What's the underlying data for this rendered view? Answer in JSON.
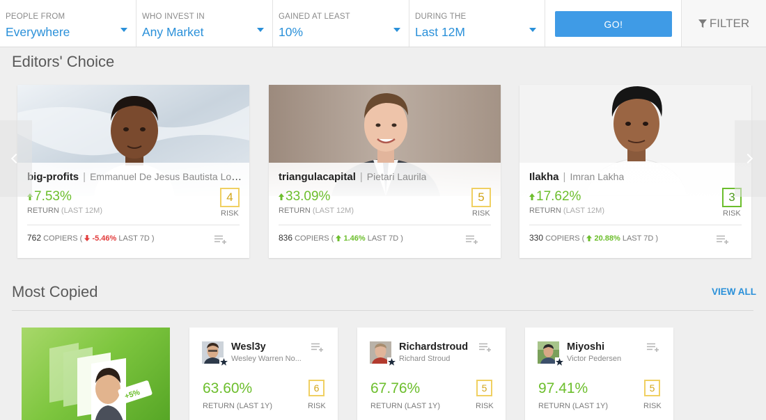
{
  "filters": [
    {
      "label": "PEOPLE FROM",
      "value": "Everywhere"
    },
    {
      "label": "WHO INVEST IN",
      "value": "Any Market"
    },
    {
      "label": "GAINED AT LEAST",
      "value": "10%"
    },
    {
      "label": "DURING THE",
      "value": "Last 12M"
    }
  ],
  "go_label": "GO!",
  "filter_label": "FILTER",
  "editors_choice": {
    "title": "Editors' Choice",
    "cards": [
      {
        "username": "big-profits",
        "fullname": "Emmanuel De Jesus Bautista Lop...",
        "return": "7.53%",
        "return_label": "RETURN",
        "period": "(LAST 12M)",
        "risk": "4",
        "risk_label": "RISK",
        "copiers": "762",
        "copiers_label": "COPIERS (",
        "change": "-5.46%",
        "change_dir": "down",
        "change_period": "LAST 7D )"
      },
      {
        "username": "triangulacapital",
        "fullname": "Pietari Laurila",
        "return": "33.09%",
        "return_label": "RETURN",
        "period": "(LAST 12M)",
        "risk": "5",
        "risk_label": "RISK",
        "copiers": "836",
        "copiers_label": "COPIERS (",
        "change": "1.46%",
        "change_dir": "up",
        "change_period": "LAST 7D )"
      },
      {
        "username": "Ilakha",
        "fullname": "Imran Lakha",
        "return": "17.62%",
        "return_label": "RETURN",
        "period": "(LAST 12M)",
        "risk": "3",
        "risk_label": "RISK",
        "copiers": "330",
        "copiers_label": "COPIERS (",
        "change": "20.88%",
        "change_dir": "up",
        "change_period": "LAST 7D )"
      }
    ]
  },
  "most_copied": {
    "title": "Most Copied",
    "view_all": "VIEW ALL",
    "promo_badge": "+5%",
    "cards": [
      {
        "username": "Wesl3y",
        "fullname": "Wesley Warren No...",
        "return": "63.60%",
        "return_label": "RETURN (LAST 1Y)",
        "risk": "6",
        "risk_label": "RISK"
      },
      {
        "username": "Richardstroud",
        "fullname": "Richard Stroud",
        "return": "67.76%",
        "return_label": "RETURN (LAST 1Y)",
        "risk": "5",
        "risk_label": "RISK"
      },
      {
        "username": "Miyoshi",
        "fullname": "Victor Pedersen",
        "return": "97.41%",
        "return_label": "RETURN (LAST 1Y)",
        "risk": "5",
        "risk_label": "RISK"
      }
    ]
  },
  "colors": {
    "accent": "#2a90d9",
    "go_button": "#3f9be6",
    "positive": "#6cbe2c",
    "negative": "#e23b3b",
    "risk_4_5": "#f0d062",
    "risk_3": "#6cbe2c"
  },
  "icons": [
    "chevron-down-icon",
    "funnel-icon",
    "chevron-left-icon",
    "chevron-right-icon",
    "arrow-up-icon",
    "arrow-down-icon",
    "add-to-watchlist-icon",
    "star-badge-icon"
  ]
}
